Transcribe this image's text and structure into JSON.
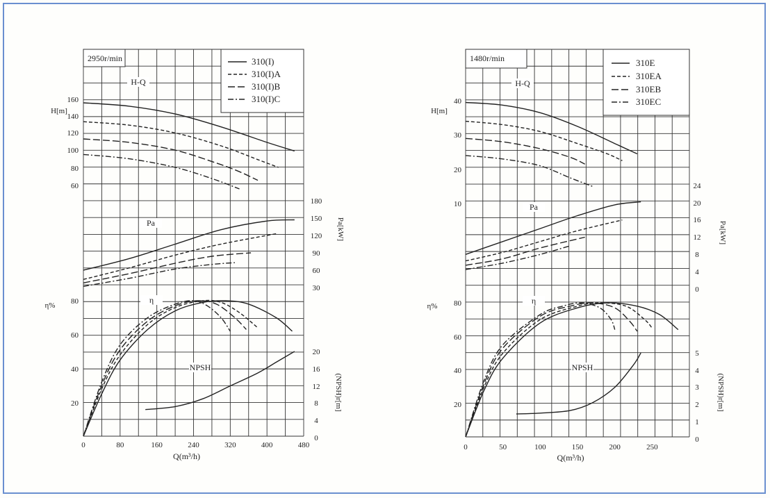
{
  "chart_data": [
    {
      "type": "line",
      "speed_label": "2950r/min",
      "xlabel": "Q(m³/h)",
      "x_ticks": [
        "0",
        "80",
        "160",
        "240",
        "320",
        "400",
        "480"
      ],
      "xlim": [
        0,
        480
      ],
      "head": {
        "label": "H-Q",
        "axis_label": "H[m]",
        "ticks": [
          "160",
          "140",
          "120",
          "100",
          "80",
          "60"
        ]
      },
      "power": {
        "label": "Pa",
        "axis_label": "Pa[kW]",
        "ticks": [
          "180",
          "150",
          "120",
          "90",
          "60",
          "30"
        ]
      },
      "efficiency": {
        "label": "η",
        "axis_label": "η%",
        "ticks": [
          "80",
          "60",
          "40",
          "20"
        ]
      },
      "npsh": {
        "label": "NPSH",
        "axis_label": "(NPSH)r[m]",
        "ticks": [
          "20",
          "16",
          "12",
          "8",
          "4",
          "0"
        ]
      },
      "series": [
        {
          "name": "310(I)",
          "style": "solid",
          "head": [
            [
              0,
              156
            ],
            [
              100,
              152
            ],
            [
              200,
              143
            ],
            [
              300,
              128
            ],
            [
              400,
              110
            ],
            [
              460,
              100
            ]
          ],
          "power": [
            [
              0,
              60
            ],
            [
              100,
              80
            ],
            [
              200,
              105
            ],
            [
              300,
              130
            ],
            [
              400,
              145
            ],
            [
              460,
              147
            ]
          ],
          "efficiency": [
            [
              0,
              0
            ],
            [
              40,
              25
            ],
            [
              80,
              45
            ],
            [
              140,
              63
            ],
            [
              200,
              74
            ],
            [
              260,
              79
            ],
            [
              310,
              80
            ],
            [
              360,
              78
            ],
            [
              420,
              70
            ],
            [
              455,
              62
            ]
          ]
        },
        {
          "name": "310(I)A",
          "style": "short-dash",
          "head": [
            [
              0,
              134
            ],
            [
              100,
              130
            ],
            [
              200,
              121
            ],
            [
              300,
              106
            ],
            [
              380,
              90
            ],
            [
              425,
              81
            ]
          ],
          "power": [
            [
              0,
              44
            ],
            [
              100,
              64
            ],
            [
              200,
              86
            ],
            [
              300,
              105
            ],
            [
              420,
              123
            ]
          ],
          "efficiency": [
            [
              0,
              0
            ],
            [
              40,
              28
            ],
            [
              80,
              48
            ],
            [
              140,
              66
            ],
            [
              200,
              76
            ],
            [
              260,
              80
            ],
            [
              300,
              79
            ],
            [
              340,
              73
            ],
            [
              380,
              64
            ]
          ]
        },
        {
          "name": "310(I)B",
          "style": "long-dash",
          "head": [
            [
              0,
              114
            ],
            [
              100,
              110
            ],
            [
              200,
              101
            ],
            [
              290,
              86
            ],
            [
              340,
              76
            ],
            [
              380,
              66
            ]
          ],
          "power": [
            [
              0,
              38
            ],
            [
              100,
              54
            ],
            [
              200,
              72
            ],
            [
              280,
              84
            ],
            [
              365,
              90
            ]
          ],
          "efficiency": [
            [
              0,
              0
            ],
            [
              40,
              30
            ],
            [
              80,
              51
            ],
            [
              140,
              68
            ],
            [
              200,
              77
            ],
            [
              250,
              80
            ],
            [
              290,
              78
            ],
            [
              330,
              70
            ],
            [
              355,
              63
            ]
          ]
        },
        {
          "name": "310(I)C",
          "style": "dash-dot",
          "head": [
            [
              0,
              96
            ],
            [
              100,
              91
            ],
            [
              200,
              81
            ],
            [
              280,
              68
            ],
            [
              340,
              56
            ]
          ],
          "power": [
            [
              0,
              32
            ],
            [
              100,
              46
            ],
            [
              200,
              62
            ],
            [
              280,
              70
            ],
            [
              330,
              73
            ]
          ],
          "efficiency": [
            [
              0,
              0
            ],
            [
              40,
              32
            ],
            [
              80,
              54
            ],
            [
              140,
              70
            ],
            [
              200,
              78
            ],
            [
              240,
              80
            ],
            [
              270,
              77
            ],
            [
              300,
              70
            ],
            [
              320,
              62
            ]
          ]
        }
      ],
      "npsh_curve": [
        [
          135,
          6.5
        ],
        [
          200,
          7.2
        ],
        [
          260,
          9
        ],
        [
          320,
          12
        ],
        [
          380,
          15
        ],
        [
          420,
          17.5
        ],
        [
          460,
          20
        ]
      ]
    },
    {
      "type": "line",
      "speed_label": "1480r/min",
      "xlabel": "Q(m³/h)",
      "x_ticks": [
        "0",
        "50",
        "100",
        "150",
        "200",
        "250"
      ],
      "xlim": [
        0,
        300
      ],
      "head": {
        "label": "H-Q",
        "axis_label": "H[m]",
        "ticks": [
          "40",
          "30",
          "20",
          "10"
        ]
      },
      "power": {
        "label": "Pa",
        "axis_label": "Pa[kW]",
        "ticks": [
          "24",
          "20",
          "16",
          "12",
          "8",
          "4",
          "0"
        ]
      },
      "efficiency": {
        "label": "η",
        "axis_label": "η%",
        "ticks": [
          "80",
          "60",
          "40",
          "20"
        ]
      },
      "npsh": {
        "label": "NPSH",
        "axis_label": "(NPSH)r[m]",
        "ticks": [
          "5",
          "4",
          "3",
          "2",
          "1",
          "0"
        ]
      },
      "series": [
        {
          "name": "310E",
          "style": "solid",
          "head": [
            [
              0,
              39.5
            ],
            [
              50,
              38.7
            ],
            [
              100,
              36.5
            ],
            [
              150,
              32.5
            ],
            [
              200,
              27.5
            ],
            [
              230,
              24.5
            ]
          ],
          "power": [
            [
              0,
              8
            ],
            [
              50,
              11
            ],
            [
              100,
              14
            ],
            [
              150,
              17
            ],
            [
              200,
              19.5
            ],
            [
              235,
              20.2
            ]
          ],
          "efficiency": [
            [
              0,
              0
            ],
            [
              25,
              28
            ],
            [
              50,
              47
            ],
            [
              100,
              68
            ],
            [
              150,
              77
            ],
            [
              190,
              80
            ],
            [
              230,
              78
            ],
            [
              260,
              73
            ],
            [
              285,
              64
            ]
          ]
        },
        {
          "name": "310EA",
          "style": "short-dash",
          "head": [
            [
              0,
              34
            ],
            [
              50,
              33
            ],
            [
              100,
              31
            ],
            [
              150,
              27.5
            ],
            [
              190,
              24.5
            ],
            [
              210,
              22.5
            ]
          ],
          "power": [
            [
              0,
              6.5
            ],
            [
              50,
              8.5
            ],
            [
              100,
              11
            ],
            [
              150,
              13.5
            ],
            [
              210,
              16
            ]
          ],
          "efficiency": [
            [
              0,
              0
            ],
            [
              25,
              30
            ],
            [
              50,
              50
            ],
            [
              100,
              70
            ],
            [
              150,
              78
            ],
            [
              180,
              80
            ],
            [
              215,
              78
            ],
            [
              240,
              70
            ],
            [
              250,
              65
            ]
          ]
        },
        {
          "name": "310EB",
          "style": "long-dash",
          "head": [
            [
              0,
              29
            ],
            [
              50,
              28
            ],
            [
              100,
              26
            ],
            [
              140,
              23.5
            ],
            [
              160,
              21.5
            ]
          ],
          "power": [
            [
              0,
              5.5
            ],
            [
              50,
              7
            ],
            [
              100,
              9.5
            ],
            [
              160,
              12
            ]
          ],
          "efficiency": [
            [
              0,
              0
            ],
            [
              25,
              32
            ],
            [
              50,
              53
            ],
            [
              100,
              72
            ],
            [
              140,
              78
            ],
            [
              170,
              80
            ],
            [
              200,
              77
            ],
            [
              220,
              69
            ],
            [
              230,
              63
            ]
          ]
        },
        {
          "name": "310EC",
          "style": "dash-dot",
          "head": [
            [
              0,
              24
            ],
            [
              50,
              23
            ],
            [
              100,
              21
            ],
            [
              140,
              17.5
            ],
            [
              170,
              15
            ]
          ],
          "power": [
            [
              0,
              4.5
            ],
            [
              50,
              6
            ],
            [
              100,
              8
            ],
            [
              140,
              10
            ]
          ],
          "efficiency": [
            [
              0,
              0
            ],
            [
              25,
              34
            ],
            [
              50,
              55
            ],
            [
              100,
              73
            ],
            [
              130,
              78
            ],
            [
              155,
              80
            ],
            [
              180,
              77
            ],
            [
              195,
              70
            ],
            [
              200,
              64
            ]
          ]
        }
      ],
      "npsh_curve": [
        [
          68,
          1.45
        ],
        [
          100,
          1.5
        ],
        [
          140,
          1.65
        ],
        [
          170,
          2.1
        ],
        [
          200,
          3
        ],
        [
          225,
          4.3
        ],
        [
          235,
          5
        ]
      ]
    }
  ]
}
